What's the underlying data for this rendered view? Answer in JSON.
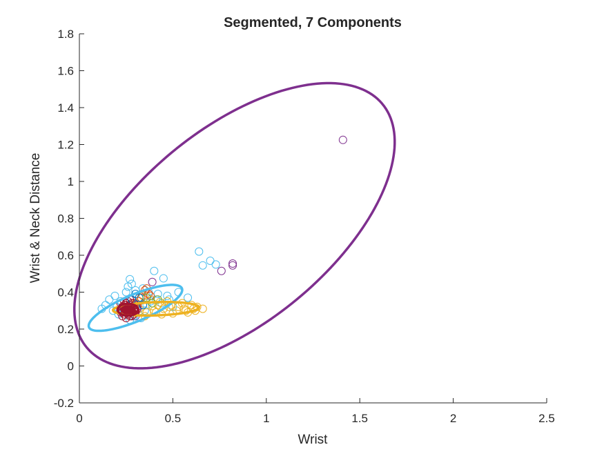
{
  "chart_data": {
    "type": "scatter",
    "title": "Segmented, 7 Components",
    "xlabel": "Wrist",
    "ylabel": "Wrist & Neck Distance",
    "xlim": [
      0,
      2.5
    ],
    "ylim": [
      -0.2,
      1.8
    ],
    "xticks": [
      0,
      0.5,
      1,
      1.5,
      2,
      2.5
    ],
    "yticks": [
      -0.2,
      0,
      0.2,
      0.4,
      0.6,
      0.8,
      1,
      1.2,
      1.4,
      1.6,
      1.8
    ],
    "xtick_labels": [
      "0",
      "0.5",
      "1",
      "1.5",
      "2",
      "2.5"
    ],
    "ytick_labels": [
      "-0.2",
      "0",
      "0.2",
      "0.4",
      "0.6",
      "0.8",
      "1",
      "1.2",
      "1.4",
      "1.6",
      "1.8"
    ],
    "grid": false,
    "legend": "none",
    "colors": {
      "purple": "#7E2F8E",
      "lightblue": "#4DBEEE",
      "yellow": "#EDB120",
      "darkred": "#A2142F",
      "orange": "#D95319",
      "blue": "#0072BD",
      "green": "#77AC30"
    },
    "ellipses": [
      {
        "color": "purple",
        "center": [
          0.83,
          0.76
        ],
        "a": 1.03,
        "b": 0.52,
        "angle_deg": 40
      },
      {
        "color": "lightblue",
        "center": [
          0.3,
          0.315
        ],
        "a": 0.27,
        "b": 0.072,
        "angle_deg": 23
      },
      {
        "color": "yellow",
        "center": [
          0.41,
          0.31
        ],
        "a": 0.23,
        "b": 0.036,
        "angle_deg": 2
      },
      {
        "color": "darkred",
        "center": [
          0.26,
          0.305
        ],
        "a": 0.055,
        "b": 0.032,
        "angle_deg": 0
      }
    ],
    "series": [
      {
        "color": "purple",
        "x": [
          1.41,
          0.82,
          0.82,
          0.76,
          0.39,
          0.25,
          0.3,
          0.22
        ],
        "y": [
          1.225,
          0.555,
          0.545,
          0.515,
          0.455,
          0.3,
          0.27,
          0.29
        ]
      },
      {
        "color": "lightblue",
        "x": [
          0.64,
          0.7,
          0.66,
          0.73,
          0.4,
          0.45,
          0.27,
          0.28,
          0.26,
          0.3,
          0.34,
          0.37,
          0.19,
          0.16,
          0.14,
          0.12,
          0.2,
          0.22,
          0.32,
          0.36,
          0.42,
          0.48,
          0.53,
          0.58,
          0.24,
          0.29,
          0.31,
          0.35,
          0.38,
          0.44,
          0.5,
          0.21,
          0.27,
          0.33,
          0.41,
          0.47,
          0.25,
          0.18,
          0.36
        ],
        "y": [
          0.62,
          0.57,
          0.545,
          0.55,
          0.515,
          0.475,
          0.47,
          0.445,
          0.43,
          0.41,
          0.42,
          0.4,
          0.38,
          0.36,
          0.33,
          0.31,
          0.32,
          0.35,
          0.37,
          0.38,
          0.39,
          0.36,
          0.4,
          0.37,
          0.29,
          0.27,
          0.33,
          0.3,
          0.35,
          0.34,
          0.32,
          0.28,
          0.25,
          0.26,
          0.36,
          0.38,
          0.4,
          0.3,
          0.33
        ]
      },
      {
        "color": "yellow",
        "x": [
          0.63,
          0.66,
          0.6,
          0.56,
          0.52,
          0.48,
          0.44,
          0.4,
          0.36,
          0.32,
          0.47,
          0.55,
          0.62,
          0.5,
          0.42,
          0.38,
          0.34,
          0.58,
          0.45,
          0.53,
          0.3,
          0.28,
          0.35,
          0.41,
          0.49,
          0.57,
          0.61,
          0.43,
          0.39
        ],
        "y": [
          0.32,
          0.31,
          0.33,
          0.31,
          0.3,
          0.32,
          0.28,
          0.3,
          0.29,
          0.31,
          0.35,
          0.34,
          0.3,
          0.285,
          0.33,
          0.36,
          0.38,
          0.29,
          0.31,
          0.32,
          0.34,
          0.3,
          0.27,
          0.29,
          0.33,
          0.3,
          0.31,
          0.345,
          0.325
        ]
      },
      {
        "color": "darkred",
        "x": [
          0.22,
          0.23,
          0.24,
          0.25,
          0.26,
          0.27,
          0.28,
          0.29,
          0.3,
          0.31,
          0.23,
          0.25,
          0.27,
          0.29,
          0.24,
          0.26,
          0.28,
          0.3,
          0.22,
          0.25,
          0.27,
          0.29,
          0.24,
          0.26,
          0.28,
          0.23,
          0.25,
          0.27,
          0.3,
          0.26,
          0.24,
          0.28,
          0.31,
          0.22,
          0.27,
          0.25,
          0.29,
          0.26,
          0.23,
          0.28
        ],
        "y": [
          0.3,
          0.32,
          0.28,
          0.34,
          0.3,
          0.33,
          0.29,
          0.31,
          0.3,
          0.32,
          0.27,
          0.29,
          0.31,
          0.28,
          0.33,
          0.35,
          0.34,
          0.33,
          0.34,
          0.26,
          0.27,
          0.3,
          0.31,
          0.3,
          0.32,
          0.29,
          0.33,
          0.36,
          0.29,
          0.28,
          0.35,
          0.3,
          0.31,
          0.31,
          0.29,
          0.3,
          0.34,
          0.32,
          0.3,
          0.27
        ]
      },
      {
        "color": "orange",
        "x": [
          0.35,
          0.37,
          0.33,
          0.36,
          0.32,
          0.38
        ],
        "y": [
          0.41,
          0.39,
          0.37,
          0.42,
          0.35,
          0.38
        ]
      },
      {
        "color": "blue",
        "x": [
          0.3,
          0.28,
          0.32,
          0.34
        ],
        "y": [
          0.39,
          0.36,
          0.37,
          0.33
        ]
      },
      {
        "color": "green",
        "x": [
          0.36,
          0.39,
          0.42
        ],
        "y": [
          0.37,
          0.34,
          0.36
        ]
      }
    ]
  }
}
